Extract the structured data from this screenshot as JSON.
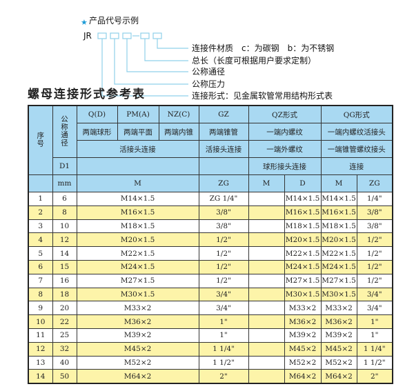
{
  "example": {
    "heading": "产品代号示例",
    "code_prefix": "JR",
    "separator": "-",
    "labels": [
      "连接件材质　c：为碳钢　b：为不锈钢",
      "总长（长度可根据用户要求定制）",
      "公称通径",
      "公称压力",
      "连接形式：见金属软管常用结构形式表"
    ],
    "accent_color": "#1a9ad6"
  },
  "title": "螺母连接形式参考表",
  "header": {
    "seq": "序号",
    "nominal": "公称通径",
    "d1": "D1",
    "mm": "mm",
    "q": "Q(D)",
    "pm": "PM(A)",
    "nz": "NZ(C)",
    "gz": "GZ",
    "qz": "QZ形式",
    "qg": "QG形式",
    "q_desc": "两端球形",
    "pm_desc": "两端平面",
    "nz_desc": "两端内锥",
    "gz_desc": "两端锥管",
    "qz_desc1": "一端内螺纹",
    "qg_desc1": "一端内螺纹活接头",
    "union": "活接头连接",
    "gz_union": "活接头连接",
    "qz_desc2": "一端外螺纹",
    "qg_desc2": "一端锥管螺纹接头",
    "qz_desc3": "球形接头连接",
    "qg_desc3": "连接",
    "m": "M",
    "zg": "ZG",
    "qz_m": "M",
    "qz_d": "D",
    "qg_m": "M",
    "qg_zg": "ZG"
  },
  "rows": [
    {
      "no": "1",
      "dn": "6",
      "m": "M14×1.5",
      "zg": "ZG 1/4\"",
      "qz_m": "",
      "qz_d": "M14×1.5",
      "qg_m": "M14×1.5",
      "qg_zg": "1/4\""
    },
    {
      "no": "2",
      "dn": "8",
      "m": "M16×1.5",
      "zg": "3/8\"",
      "qz_m": "",
      "qz_d": "M16×1.5",
      "qg_m": "M16×1.5",
      "qg_zg": "3/8\""
    },
    {
      "no": "3",
      "dn": "10",
      "m": "M18×1.5",
      "zg": "3/8\"",
      "qz_m": "",
      "qz_d": "M18×1.5",
      "qg_m": "M18×1.5",
      "qg_zg": "3/8\""
    },
    {
      "no": "4",
      "dn": "12",
      "m": "M20×1.5",
      "zg": "1/2\"",
      "qz_m": "",
      "qz_d": "M20×1.5",
      "qg_m": "M20×1.5",
      "qg_zg": "1/2\""
    },
    {
      "no": "5",
      "dn": "14",
      "m": "M22×1.5",
      "zg": "1/2\"",
      "qz_m": "",
      "qz_d": "M22×1.5",
      "qg_m": "M22×1.5",
      "qg_zg": "1/2\""
    },
    {
      "no": "6",
      "dn": "15",
      "m": "M24×1.5",
      "zg": "1/2\"",
      "qz_m": "",
      "qz_d": "M24×1.5",
      "qg_m": "M24×1.5",
      "qg_zg": "1/2\""
    },
    {
      "no": "7",
      "dn": "16",
      "m": "M27×1.5",
      "zg": "1/2\"",
      "qz_m": "",
      "qz_d": "M27×1.5",
      "qg_m": "M27×1.5",
      "qg_zg": "1/2\""
    },
    {
      "no": "8",
      "dn": "18",
      "m": "M30×1.5",
      "zg": "3/4\"",
      "qz_m": "",
      "qz_d": "M30×1.5",
      "qg_m": "M30×1.5",
      "qg_zg": "3/4\""
    },
    {
      "no": "9",
      "dn": "20",
      "m": "M33×2",
      "zg": "3/4\"",
      "qz_m": "",
      "qz_d": "M33×2",
      "qg_m": "M33×2",
      "qg_zg": "3/4\""
    },
    {
      "no": "10",
      "dn": "22",
      "m": "M36×2",
      "zg": "1\"",
      "qz_m": "",
      "qz_d": "M36×2",
      "qg_m": "M36×2",
      "qg_zg": "1\""
    },
    {
      "no": "11",
      "dn": "25",
      "m": "M39×2",
      "zg": "1\"",
      "qz_m": "",
      "qz_d": "M39×2",
      "qg_m": "M39×2",
      "qg_zg": "1\""
    },
    {
      "no": "12",
      "dn": "32",
      "m": "M45×2",
      "zg": "1 1/4\"",
      "qz_m": "",
      "qz_d": "M45×2",
      "qg_m": "M45×2",
      "qg_zg": "1 1/4\""
    },
    {
      "no": "13",
      "dn": "40",
      "m": "M52×2",
      "zg": "1 1/2\"",
      "qz_m": "",
      "qz_d": "M52×2",
      "qg_m": "M52×2",
      "qg_zg": "1 1/2\""
    },
    {
      "no": "14",
      "dn": "50",
      "m": "M64×2",
      "zg": "2\"",
      "qz_m": "",
      "qz_d": "M64×2",
      "qg_m": "M64×2",
      "qg_zg": "2\""
    }
  ],
  "colors": {
    "header_bg": "#a9d9f2",
    "stripe_bg": "#fdf4a9"
  }
}
